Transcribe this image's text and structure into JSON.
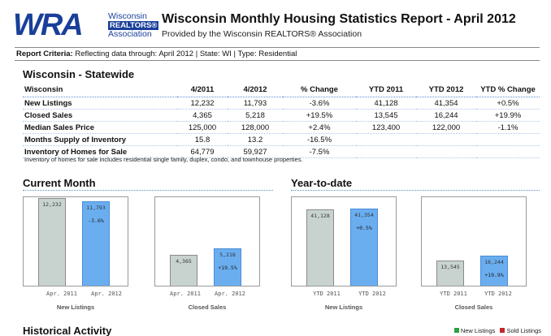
{
  "logo": {
    "letters": "WRA",
    "org_line1": "Wisconsin",
    "org_line2": "REALTORS®",
    "org_line3": "Association"
  },
  "header": {
    "title": "Wisconsin Monthly Housing Statistics Report - April 2012",
    "subtitle": "Provided by the Wisconsin REALTORS® Association"
  },
  "criteria": {
    "label": "Report Criteria:",
    "text": "Reflecting data through: April 2012 | State: WI | Type: Residential"
  },
  "statewide": {
    "title": "Wisconsin - Statewide",
    "columns": [
      "Wisconsin",
      "4/2011",
      "4/2012",
      "% Change",
      "YTD 2011",
      "YTD  2012",
      "YTD % Change"
    ],
    "rows": [
      [
        "New Listings",
        "12,232",
        "11,793",
        "-3.6%",
        "41,128",
        "41,354",
        "+0.5%"
      ],
      [
        "Closed Sales",
        "4,365",
        "5,218",
        "+19.5%",
        "13,545",
        "16,244",
        "+19.9%"
      ],
      [
        "Median Sales Price",
        "125,000",
        "128,000",
        "+2.4%",
        "123,400",
        "122,000",
        "-1.1%"
      ],
      [
        "Months Supply of Inventory",
        "15.8",
        "13.2",
        "-16.5%",
        "",
        "",
        ""
      ],
      [
        "Inventory of Homes for Sale",
        "64,779",
        "59,927",
        "-7.5%",
        "",
        "",
        ""
      ]
    ],
    "footnote": "Inventory of homes for sale includes residential single family, duplex, condo, and townhouse properties."
  },
  "sections": {
    "current_month": "Current Month",
    "year_to_date": "Year-to-date",
    "historical": "Historical Activity"
  },
  "legend": {
    "new_listings": "New Listings",
    "sold_listings": "Sold Listings",
    "new_color": "#2e9e3e",
    "sold_color": "#c0282d"
  },
  "chart_data": [
    {
      "type": "bar",
      "title": "New Listings",
      "categories": [
        "Apr. 2011",
        "Apr. 2012"
      ],
      "values": [
        12232,
        11793
      ],
      "value_labels": [
        "12,232",
        "11,793"
      ],
      "change_label": "-3.6%",
      "ylim": [
        0,
        12500
      ],
      "colors": [
        "#c8d3d0",
        "#6aaef0"
      ]
    },
    {
      "type": "bar",
      "title": "Closed Sales",
      "categories": [
        "Apr. 2011",
        "Apr. 2012"
      ],
      "values": [
        4365,
        5218
      ],
      "value_labels": [
        "4,365",
        "5,218"
      ],
      "change_label": "+19.5%",
      "ylim": [
        0,
        12500
      ],
      "colors": [
        "#c8d3d0",
        "#6aaef0"
      ]
    },
    {
      "type": "bar",
      "title": "New Listings",
      "categories": [
        "YTD 2011",
        "YTD 2012"
      ],
      "values": [
        41128,
        41354
      ],
      "value_labels": [
        "41,128",
        "41,354"
      ],
      "change_label": "+0.5%",
      "ylim": [
        0,
        48000
      ],
      "colors": [
        "#c8d3d0",
        "#6aaef0"
      ]
    },
    {
      "type": "bar",
      "title": "Closed Sales",
      "categories": [
        "YTD 2011",
        "YTD 2012"
      ],
      "values": [
        13545,
        16244
      ],
      "value_labels": [
        "13,545",
        "16,244"
      ],
      "change_label": "+19.9%",
      "ylim": [
        0,
        48000
      ],
      "colors": [
        "#c8d3d0",
        "#6aaef0"
      ]
    }
  ]
}
